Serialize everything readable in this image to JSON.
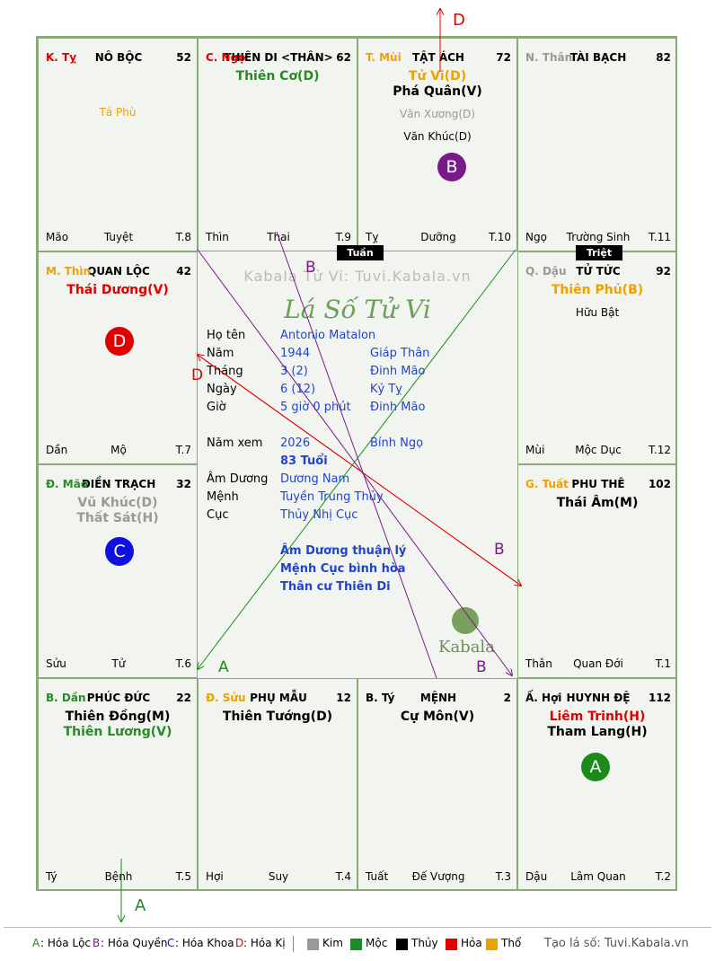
{
  "chart": {
    "cells": [
      {
        "id": "ty",
        "can": "K. Tỵ",
        "can_color": "#e00000",
        "name": "NÔ BỘC",
        "num": "52",
        "stars": [],
        "minor": [
          {
            "t": "Tả Phù",
            "c": "#f0a000"
          }
        ],
        "foot": [
          "Mão",
          "Tuyệt",
          "T.8"
        ]
      },
      {
        "id": "ngo",
        "can": "C. Ngọ",
        "can_color": "#e00000",
        "name": "THIÊN DI <THÂN>",
        "num": "62",
        "stars": [
          {
            "t": "Thiên Cơ(D)",
            "c": "#2a8a2a"
          }
        ],
        "minor": [],
        "foot": [
          "Thìn",
          "Thai",
          "T.9"
        ]
      },
      {
        "id": "mui",
        "can": "T. Mùi",
        "can_color": "#f0a000",
        "name": "TẬT ÁCH",
        "num": "72",
        "stars": [
          {
            "t": "Tử Vi(D)",
            "c": "#f0a000"
          },
          {
            "t": "Phá Quân(V)",
            "c": "#000000"
          }
        ],
        "minor": [
          {
            "t": "Văn Xương(D)",
            "c": "#999999"
          },
          {
            "t": "Văn Khúc(D)",
            "c": "#000000"
          }
        ],
        "foot": [
          "Tỵ",
          "Dưỡng",
          "T.10"
        ]
      },
      {
        "id": "than",
        "can": "N. Thân",
        "can_color": "#999999",
        "name": "TÀI BẠCH",
        "num": "82",
        "stars": [],
        "minor": [],
        "foot": [
          "Ngọ",
          "Trường Sinh",
          "T.11"
        ]
      },
      {
        "id": "thin",
        "can": "M. Thìn",
        "can_color": "#f0a000",
        "name": "QUAN LỘC",
        "num": "42",
        "stars": [
          {
            "t": "Thái Dương(V)",
            "c": "#e00000"
          }
        ],
        "minor": [],
        "foot": [
          "Dần",
          "Mộ",
          "T.7"
        ]
      },
      {
        "id": "dau",
        "can": "Q. Dậu",
        "can_color": "#999999",
        "name": "TỬ TỨC",
        "num": "92",
        "stars": [
          {
            "t": "Thiên Phủ(B)",
            "c": "#f0a000"
          }
        ],
        "minor": [
          {
            "t": "Hữu Bật",
            "c": "#000000"
          }
        ],
        "foot": [
          "Mùi",
          "Mộc Dục",
          "T.12"
        ]
      },
      {
        "id": "mao",
        "can": "Đ. Mão",
        "can_color": "#2a8a2a",
        "name": "ĐIỀN TRẠCH",
        "num": "32",
        "stars": [
          {
            "t": "Vũ Khúc(D)",
            "c": "#999999"
          },
          {
            "t": "Thất Sát(H)",
            "c": "#999999"
          }
        ],
        "minor": [],
        "foot": [
          "Sửu",
          "Tử",
          "T.6"
        ]
      },
      {
        "id": "tuat",
        "can": "G. Tuất",
        "can_color": "#f0a000",
        "name": "PHU THÊ",
        "num": "102",
        "stars": [
          {
            "t": "Thái Âm(M)",
            "c": "#000000"
          }
        ],
        "minor": [],
        "foot": [
          "Thân",
          "Quan Đới",
          "T.1"
        ]
      },
      {
        "id": "dan",
        "can": "B. Dần",
        "can_color": "#2a8a2a",
        "name": "PHÚC ĐỨC",
        "num": "22",
        "stars": [
          {
            "t": "Thiên Đồng(M)",
            "c": "#000000"
          },
          {
            "t": "Thiên Lương(V)",
            "c": "#2a8a2a"
          }
        ],
        "minor": [],
        "foot": [
          "Tý",
          "Bệnh",
          "T.5"
        ]
      },
      {
        "id": "suu",
        "can": "Đ. Sửu",
        "can_color": "#f0a000",
        "name": "PHỤ MẪU",
        "num": "12",
        "stars": [
          {
            "t": "Thiên Tướng(D)",
            "c": "#000000"
          }
        ],
        "minor": [],
        "foot": [
          "Hợi",
          "Suy",
          "T.4"
        ]
      },
      {
        "id": "tyy",
        "can": "B. Tý",
        "can_color": "#000000",
        "name": "MỆNH",
        "num": "2",
        "stars": [
          {
            "t": "Cự Môn(V)",
            "c": "#000000"
          }
        ],
        "minor": [],
        "foot": [
          "Tuất",
          "Đế Vượng",
          "T.3"
        ]
      },
      {
        "id": "hoi",
        "can": "Ấ. Hợi",
        "can_color": "#000000",
        "name": "HUYNH ĐỆ",
        "num": "112",
        "stars": [
          {
            "t": "Liêm Trinh(H)",
            "c": "#e00000"
          },
          {
            "t": "Tham Lang(H)",
            "c": "#000000"
          }
        ],
        "minor": [],
        "foot": [
          "Dậu",
          "Lâm Quan",
          "T.2"
        ]
      }
    ],
    "tuan": "Tuần",
    "triet": "Triệt",
    "circles": [
      {
        "id": "mui",
        "label": "B",
        "color": "#7a1a8a"
      },
      {
        "id": "thin",
        "label": "D",
        "color": "#e00000"
      },
      {
        "id": "mao",
        "label": "C",
        "color": "#1010e0"
      },
      {
        "id": "hoi",
        "label": "A",
        "color": "#1a8a1a"
      }
    ],
    "arrow_labels": {
      "top_d": "D",
      "bottom_a": "A",
      "b1": "B",
      "b2": "B",
      "b3": "B",
      "a1": "A",
      "d1": "D"
    }
  },
  "center": {
    "watermark": "Kabala Tử Vi: Tuvi.Kabala.vn",
    "title": "Lá Số Tử Vi",
    "rows": [
      {
        "k": "Họ tên",
        "v": "Antonio Matalon",
        "v2": ""
      },
      {
        "k": "Năm",
        "v": "1944",
        "v2": "Giáp Thân"
      },
      {
        "k": "Tháng",
        "v": "3  (2)",
        "v2": "Đinh Mão"
      },
      {
        "k": "Ngày",
        "v": "6  (12)",
        "v2": "Kỷ Tỵ"
      },
      {
        "k": "Giờ",
        "v": "5 giờ 0 phút",
        "v2": "Đinh Mão"
      },
      {
        "k": "Năm xem",
        "v": "2026",
        "v2": "Bính Ngọ"
      },
      {
        "k": "",
        "v": "83 Tuổi",
        "v2": ""
      },
      {
        "k": "Âm Dương",
        "v": "Dương Nam",
        "v2": ""
      },
      {
        "k": "Mệnh",
        "v": "Tuyền Trung Thủy",
        "v2": ""
      },
      {
        "k": "Cục",
        "v": "Thủy Nhị Cục",
        "v2": ""
      }
    ],
    "notes": [
      "Âm Dương thuận lý",
      "Mệnh Cục bình hòa",
      "Thân cư Thiên Di"
    ],
    "logo_text": "Kabala"
  },
  "legend": {
    "hoa": [
      {
        "k": "A",
        "t": ": Hóa Lộc",
        "c": "#1a8a1a"
      },
      {
        "k": "B",
        "t": ": Hóa Quyền",
        "c": "#7a1a8a"
      },
      {
        "k": "C",
        "t": ": Hóa Khoa",
        "c": "#1010e0"
      },
      {
        "k": "D",
        "t": ": Hóa Kị",
        "c": "#e00000"
      }
    ],
    "hanh": [
      {
        "t": "Kim",
        "c": "#999999"
      },
      {
        "t": "Mộc",
        "c": "#1a8a2a"
      },
      {
        "t": "Thủy",
        "c": "#000000"
      },
      {
        "t": "Hỏa",
        "c": "#e00000"
      },
      {
        "t": "Thổ",
        "c": "#f0a000"
      }
    ],
    "credit": "Tạo lá số: Tuvi.Kabala.vn"
  }
}
